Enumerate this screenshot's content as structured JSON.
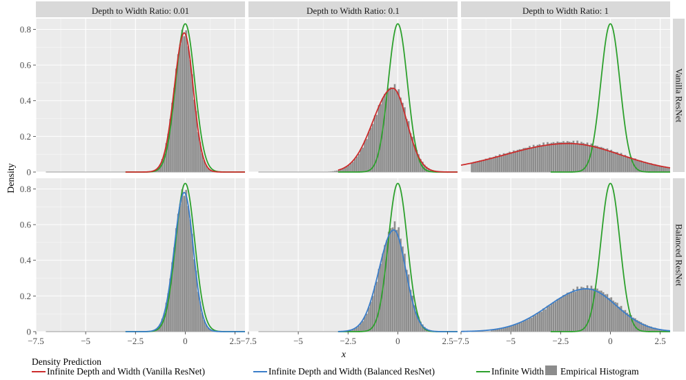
{
  "chart_data": {
    "type": "histogram-density-facets",
    "xlabel": "x",
    "ylabel": "Density",
    "xlim": [
      -7.5,
      3
    ],
    "ylim": [
      0,
      0.86
    ],
    "x_ticks": [
      -7.5,
      -5,
      -2.5,
      0,
      2.5
    ],
    "x_tick_labels": [
      "−7.5",
      "−5",
      "−2.5",
      "0",
      "2.5"
    ],
    "y_ticks": [
      0,
      0.2,
      0.4,
      0.6,
      0.8
    ],
    "y_tick_labels": [
      "0",
      "0.2",
      "0.4",
      "0.6",
      "0.8"
    ],
    "columns": [
      "Depth to Width Ratio: 0.01",
      "Depth to Width Ratio: 0.1",
      "Depth to Width Ratio: 1"
    ],
    "rows": [
      "Vanilla ResNet",
      "Balanced ResNet"
    ],
    "legend": {
      "title": "Density Prediction",
      "position": "bottom",
      "entries": [
        {
          "label": "Infinite Depth and Width (Vanilla ResNet)",
          "color": "#cc2b2b",
          "kind": "line"
        },
        {
          "label": "Infinite Depth and Width (Balanced ResNet)",
          "color": "#3a7dc9",
          "kind": "line"
        },
        {
          "label": "Infinite Width",
          "color": "#2ca02c",
          "kind": "line"
        },
        {
          "label": "Empirical Histogram",
          "color": "#8c8c8c",
          "kind": "bar"
        }
      ]
    },
    "panels": [
      {
        "row": "Vanilla ResNet",
        "column": "Depth to Width Ratio: 0.01",
        "infinite_width": {
          "mean": 0.0,
          "sd": 0.48
        },
        "infinite_depth_width": {
          "series": "Infinite Depth and Width (Vanilla ResNet)",
          "mode": -0.05,
          "peak": 0.78,
          "sd_left": 0.5,
          "sd_right": 0.45
        },
        "histogram": {
          "mode": -0.05,
          "peak": 0.79,
          "sd_left": 0.5,
          "sd_right": 0.45,
          "range": [
            -2.0,
            1.5
          ]
        }
      },
      {
        "row": "Vanilla ResNet",
        "column": "Depth to Width Ratio: 0.1",
        "infinite_width": {
          "mean": 0.0,
          "sd": 0.48
        },
        "infinite_depth_width": {
          "series": "Infinite Depth and Width (Vanilla ResNet)",
          "mode": -0.25,
          "peak": 0.47,
          "sd_left": 1.0,
          "sd_right": 0.7
        },
        "histogram": {
          "mode": -0.2,
          "peak": 0.48,
          "sd_left": 1.0,
          "sd_right": 0.7,
          "range": [
            -3.5,
            2.5
          ]
        }
      },
      {
        "row": "Vanilla ResNet",
        "column": "Depth to Width Ratio: 1",
        "infinite_width": {
          "mean": 0.0,
          "sd": 0.48
        },
        "infinite_depth_width": {
          "series": "Infinite Depth and Width (Vanilla ResNet)",
          "mode": -2.1,
          "peak": 0.16,
          "sd_left": 3.2,
          "sd_right": 2.6
        },
        "histogram": {
          "mode": -2.1,
          "peak": 0.17,
          "sd_left": 3.2,
          "sd_right": 2.6,
          "range": [
            -7.0,
            3.0
          ]
        }
      },
      {
        "row": "Balanced ResNet",
        "column": "Depth to Width Ratio: 0.01",
        "infinite_width": {
          "mean": 0.0,
          "sd": 0.48
        },
        "infinite_depth_width": {
          "series": "Infinite Depth and Width (Balanced ResNet)",
          "mode": -0.05,
          "peak": 0.78,
          "sd_left": 0.5,
          "sd_right": 0.45
        },
        "histogram": {
          "mode": -0.05,
          "peak": 0.79,
          "sd_left": 0.5,
          "sd_right": 0.45,
          "range": [
            -2.0,
            1.5
          ]
        }
      },
      {
        "row": "Balanced ResNet",
        "column": "Depth to Width Ratio: 0.1",
        "infinite_width": {
          "mean": 0.0,
          "sd": 0.48
        },
        "infinite_depth_width": {
          "series": "Infinite Depth and Width (Balanced ResNet)",
          "mode": -0.2,
          "peak": 0.57,
          "sd_left": 0.75,
          "sd_right": 0.6
        },
        "histogram": {
          "mode": -0.15,
          "peak": 0.6,
          "sd_left": 0.75,
          "sd_right": 0.6,
          "range": [
            -3.0,
            2.3
          ]
        }
      },
      {
        "row": "Balanced ResNet",
        "column": "Depth to Width Ratio: 1",
        "infinite_width": {
          "mean": 0.0,
          "sd": 0.48
        },
        "infinite_depth_width": {
          "series": "Infinite Depth and Width (Balanced ResNet)",
          "mode": -1.2,
          "peak": 0.24,
          "sd_left": 1.9,
          "sd_right": 1.5
        },
        "histogram": {
          "mode": -1.1,
          "peak": 0.25,
          "sd_left": 1.9,
          "sd_right": 1.5,
          "range": [
            -6.0,
            3.0
          ]
        }
      }
    ],
    "grid": true,
    "panel_background": "#ebebeb",
    "strip_background": "#d9d9d9",
    "grid_color": "#ffffff"
  }
}
